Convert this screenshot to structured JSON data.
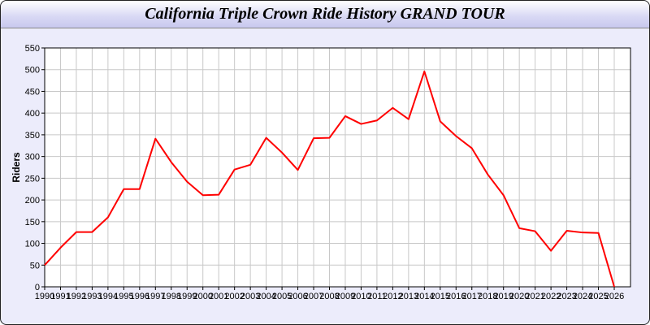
{
  "chart_data": {
    "type": "line",
    "title": "California Triple Crown Ride History GRAND TOUR",
    "xlabel": "",
    "ylabel": "Riders",
    "ylim": [
      0,
      550
    ],
    "yticks": [
      0,
      50,
      100,
      150,
      200,
      250,
      300,
      350,
      400,
      450,
      500,
      550
    ],
    "grid": true,
    "line_color": "#ff0000",
    "categories": [
      "1990",
      "1991",
      "1992",
      "1993",
      "1994",
      "1995",
      "1996",
      "1997",
      "1998",
      "1999",
      "2000",
      "2001",
      "2002",
      "2003",
      "2004",
      "2005",
      "2006",
      "2007",
      "2008",
      "2009",
      "2010",
      "2011",
      "2012",
      "2013",
      "2014",
      "2015",
      "2016",
      "2017",
      "2018",
      "2019",
      "2020",
      "2021",
      "2022",
      "2023",
      "2024",
      "2025",
      "2026"
    ],
    "values": [
      50,
      90,
      126,
      126,
      160,
      225,
      225,
      341,
      287,
      242,
      211,
      212,
      270,
      281,
      343,
      309,
      269,
      342,
      343,
      393,
      375,
      383,
      412,
      386,
      496,
      381,
      347,
      319,
      259,
      211,
      135,
      128,
      83,
      129,
      125,
      124,
      0
    ]
  }
}
